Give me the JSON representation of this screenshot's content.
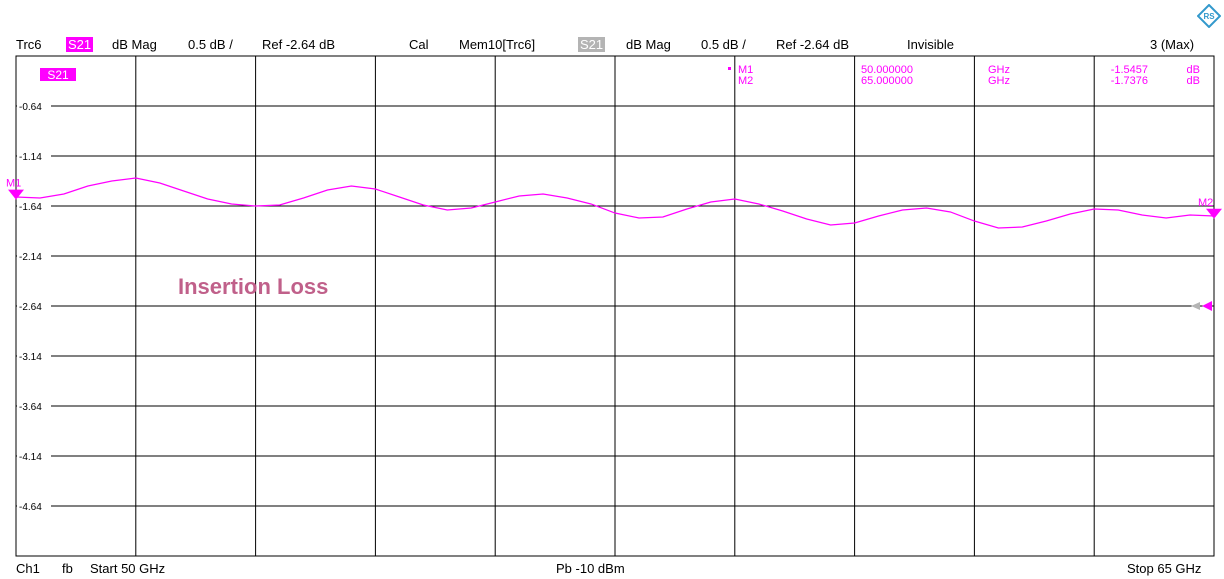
{
  "header": {
    "trace": "Trc6",
    "trace_param": "S21",
    "trace_format": "dB Mag",
    "trace_scale": "0.5 dB /",
    "trace_ref": "Ref -2.64 dB",
    "trace_cal": "Cal",
    "mem_name": "Mem10[Trc6]",
    "mem_param": "S21",
    "mem_format": "dB Mag",
    "mem_scale": "0.5 dB /",
    "mem_ref": "Ref -2.64 dB",
    "mem_state": "Invisible",
    "right_info": "3 (Max)"
  },
  "footer": {
    "channel": "Ch1",
    "sweep": "fb",
    "start": "Start  50 GHz",
    "power": "Pb   -10 dBm",
    "stop": "Stop  65 GHz"
  },
  "markers": [
    {
      "name": "M1",
      "x_text": "50.000000",
      "unit": "GHz",
      "y_text": "-1.5457",
      "y_unit": "dB",
      "x": 50.0,
      "y": -1.5457
    },
    {
      "name": "M2",
      "x_text": "65.000000",
      "unit": "GHz",
      "y_text": "-1.7376",
      "y_unit": "dB",
      "x": 65.0,
      "y": -1.7376
    }
  ],
  "colors": {
    "trace": "#ff00ff",
    "memory_tag": "#b4b4b4",
    "annotation": "#c0608a",
    "grid": "#000000",
    "logo": "#3399cc"
  },
  "chart_data": {
    "type": "line",
    "trace_label": "S21",
    "annotation": "Insertion Loss",
    "xlim": [
      50,
      65
    ],
    "ylim": [
      -5.14,
      -0.14
    ],
    "x_divisions": 10,
    "yticks": [
      -0.64,
      -1.14,
      -1.64,
      -2.14,
      -2.64,
      -3.14,
      -3.64,
      -4.14,
      -4.64
    ],
    "ytick_labels": [
      "-0.64",
      "-1.14",
      "-1.64",
      "-2.14",
      "-2.64",
      "-3.14",
      "-3.64",
      "-4.14",
      "-4.64"
    ],
    "reference_level": -2.64,
    "grid": true,
    "series": [
      {
        "x": [
          50.0,
          50.3,
          50.6,
          50.9,
          51.2,
          51.5,
          51.8,
          52.1,
          52.4,
          52.7,
          53.0,
          53.3,
          53.6,
          53.9,
          54.2,
          54.5,
          54.8,
          55.1,
          55.4,
          55.7,
          56.0,
          56.3,
          56.6,
          56.9,
          57.2,
          57.5,
          57.8,
          58.1,
          58.4,
          58.7,
          59.0,
          59.3,
          59.6,
          59.9,
          60.2,
          60.5,
          60.8,
          61.1,
          61.4,
          61.7,
          62.0,
          62.3,
          62.6,
          62.9,
          63.2,
          63.5,
          63.8,
          64.1,
          64.4,
          64.7,
          65.0
        ],
        "y": [
          -1.55,
          -1.56,
          -1.52,
          -1.44,
          -1.39,
          -1.36,
          -1.41,
          -1.49,
          -1.57,
          -1.62,
          -1.64,
          -1.63,
          -1.56,
          -1.48,
          -1.44,
          -1.47,
          -1.55,
          -1.63,
          -1.68,
          -1.66,
          -1.6,
          -1.54,
          -1.52,
          -1.56,
          -1.62,
          -1.71,
          -1.76,
          -1.75,
          -1.67,
          -1.6,
          -1.57,
          -1.62,
          -1.69,
          -1.77,
          -1.83,
          -1.81,
          -1.74,
          -1.68,
          -1.66,
          -1.7,
          -1.79,
          -1.86,
          -1.85,
          -1.79,
          -1.72,
          -1.67,
          -1.68,
          -1.73,
          -1.76,
          -1.73,
          -1.74
        ]
      }
    ]
  }
}
